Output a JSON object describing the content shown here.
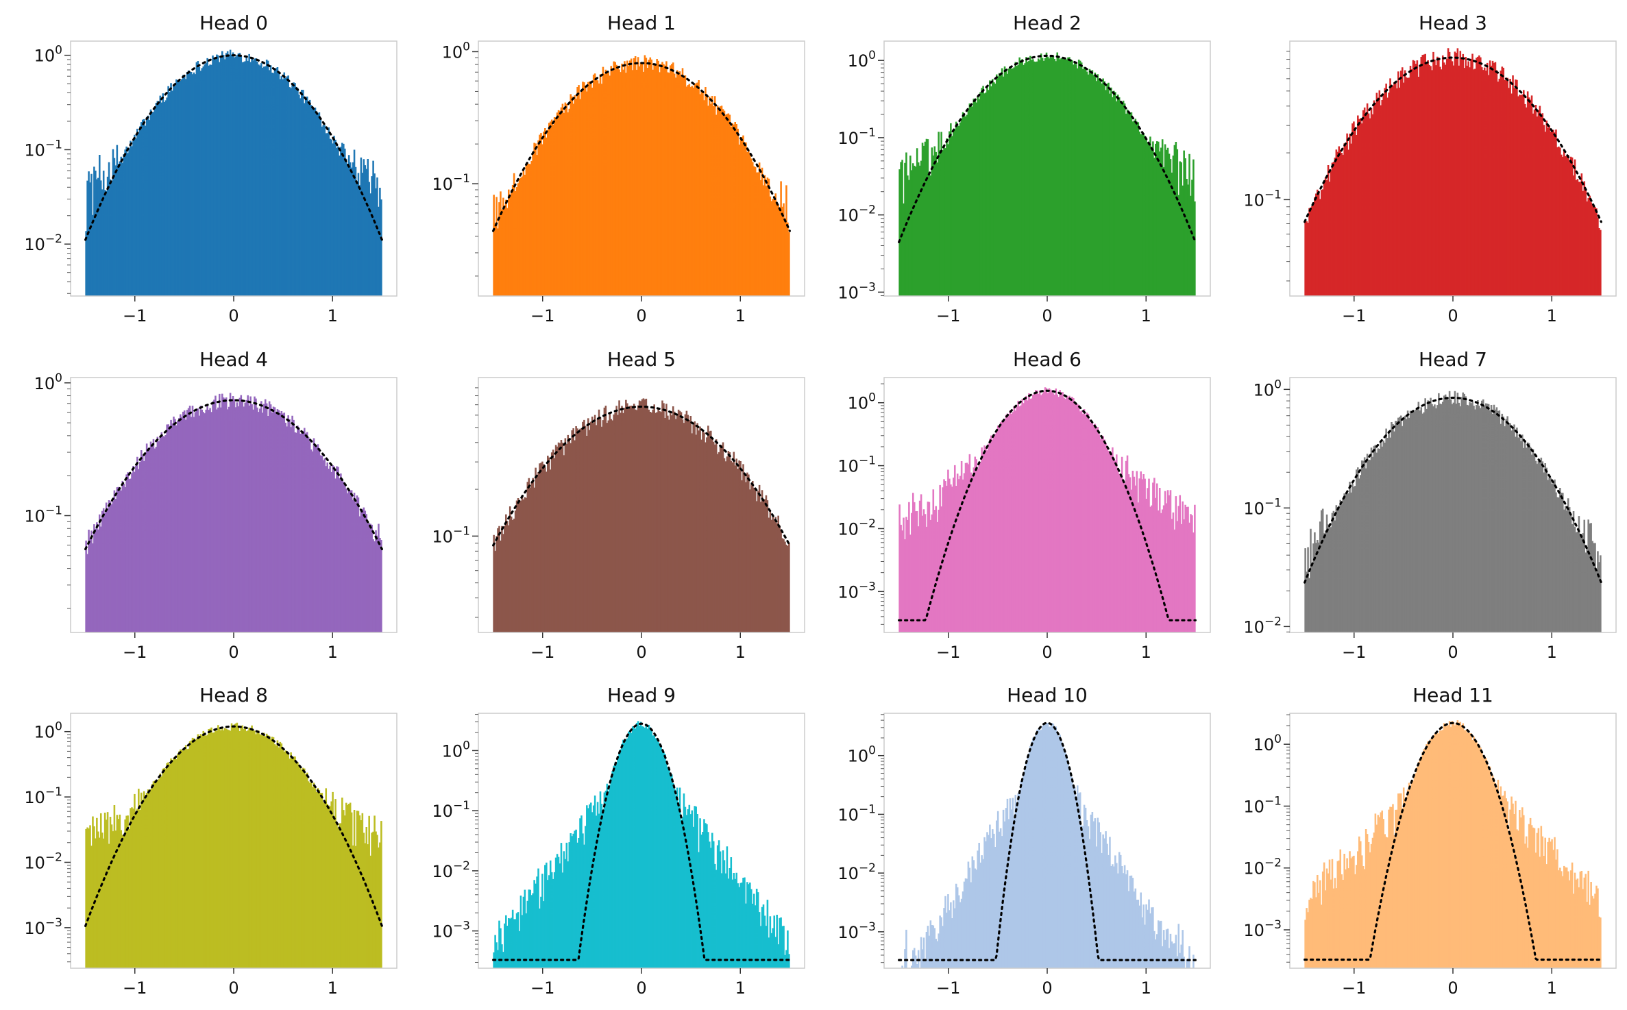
{
  "chart_data": [
    {
      "type": "histogram",
      "title": "Head 0",
      "color": "#1f77b4",
      "log_scale": true,
      "ylim_exp": [
        -2.55,
        0.15
      ],
      "yticks": [
        {
          "exp": 0,
          "label": "10",
          "sup": "0"
        },
        {
          "exp": -1,
          "label": "10",
          "sup": "−1"
        },
        {
          "exp": -2,
          "label": "10",
          "sup": "−2"
        }
      ],
      "xticks": [
        {
          "value": -1,
          "label": "−1"
        },
        {
          "value": 0,
          "label": "0"
        },
        {
          "value": 1,
          "label": "1"
        }
      ],
      "xlim": [
        -1.65,
        1.65
      ],
      "sigma": 0.5,
      "peak": 1.0,
      "fit_floor": 0.0036,
      "noise_floor": 0.0036,
      "grid": false
    },
    {
      "type": "histogram",
      "title": "Head 1",
      "color": "#ff7f0e",
      "log_scale": true,
      "ylim_exp": [
        -1.85,
        0.08
      ],
      "yticks": [
        {
          "exp": 0,
          "label": "10",
          "sup": "0"
        },
        {
          "exp": -1,
          "label": "10",
          "sup": "−1"
        }
      ],
      "xticks": [
        {
          "value": -1,
          "label": "−1"
        },
        {
          "value": 0,
          "label": "0"
        },
        {
          "value": 1,
          "label": "1"
        }
      ],
      "xlim": [
        -1.65,
        1.65
      ],
      "sigma": 0.62,
      "peak": 0.82,
      "fit_floor": 0.016,
      "noise_floor": 0.016,
      "grid": false
    },
    {
      "type": "histogram",
      "title": "Head 2",
      "color": "#2ca02c",
      "log_scale": true,
      "ylim_exp": [
        -3.05,
        0.25
      ],
      "yticks": [
        {
          "exp": 0,
          "label": "10",
          "sup": "0"
        },
        {
          "exp": -1,
          "label": "10",
          "sup": "−1"
        },
        {
          "exp": -2,
          "label": "10",
          "sup": "−2"
        },
        {
          "exp": -3,
          "label": "10",
          "sup": "−3"
        }
      ],
      "xticks": [
        {
          "value": -1,
          "label": "−1"
        },
        {
          "value": 0,
          "label": "0"
        },
        {
          "value": 1,
          "label": "1"
        }
      ],
      "xlim": [
        -1.65,
        1.65
      ],
      "sigma": 0.45,
      "peak": 1.15,
      "fit_floor": 0.0012,
      "noise_floor": 0.0012,
      "grid": false
    },
    {
      "type": "histogram",
      "title": "Head 3",
      "color": "#d62728",
      "log_scale": true,
      "ylim_exp": [
        -1.62,
        0.02
      ],
      "yticks": [
        {
          "exp": -1,
          "label": "10",
          "sup": "−1"
        }
      ],
      "xticks": [
        {
          "value": -1,
          "label": "−1"
        },
        {
          "value": 0,
          "label": "0"
        },
        {
          "value": 1,
          "label": "1"
        }
      ],
      "xlim": [
        -1.65,
        1.65
      ],
      "sigma": 0.68,
      "peak": 0.82,
      "fit_floor": 0.032,
      "noise_floor": 0.032,
      "grid": false
    },
    {
      "type": "histogram",
      "title": "Head 4",
      "color": "#9467bd",
      "log_scale": true,
      "ylim_exp": [
        -1.88,
        0.04
      ],
      "yticks": [
        {
          "exp": 0,
          "label": "10",
          "sup": "0"
        },
        {
          "exp": -1,
          "label": "10",
          "sup": "−1"
        }
      ],
      "xticks": [
        {
          "value": -1,
          "label": "−1"
        },
        {
          "value": 0,
          "label": "0"
        },
        {
          "value": 1,
          "label": "1"
        }
      ],
      "xlim": [
        -1.65,
        1.65
      ],
      "sigma": 0.66,
      "peak": 0.74,
      "fit_floor": 0.015,
      "noise_floor": 0.015,
      "grid": false
    },
    {
      "type": "histogram",
      "title": "Head 5",
      "color": "#8c564b",
      "log_scale": true,
      "ylim_exp": [
        -1.62,
        0.02
      ],
      "yticks": [
        {
          "exp": -1,
          "label": "10",
          "sup": "−1"
        }
      ],
      "xticks": [
        {
          "value": -1,
          "label": "−1"
        },
        {
          "value": 0,
          "label": "0"
        },
        {
          "value": 1,
          "label": "1"
        }
      ],
      "xlim": [
        -1.65,
        1.65
      ],
      "sigma": 0.74,
      "peak": 0.68,
      "fit_floor": 0.025,
      "noise_floor": 0.025,
      "grid": false
    },
    {
      "type": "histogram",
      "title": "Head 6",
      "color": "#e377c2",
      "log_scale": true,
      "ylim_exp": [
        -3.65,
        0.4
      ],
      "yticks": [
        {
          "exp": 0,
          "label": "10",
          "sup": "0"
        },
        {
          "exp": -1,
          "label": "10",
          "sup": "−1"
        },
        {
          "exp": -2,
          "label": "10",
          "sup": "−2"
        },
        {
          "exp": -3,
          "label": "10",
          "sup": "−3"
        }
      ],
      "xticks": [
        {
          "value": -1,
          "label": "−1"
        },
        {
          "value": 0,
          "label": "0"
        },
        {
          "value": 1,
          "label": "1"
        }
      ],
      "xlim": [
        -1.65,
        1.65
      ],
      "sigma": 0.3,
      "peak": 1.55,
      "fit_floor": 0.00035,
      "noise_floor": 0.00035,
      "grid": false
    },
    {
      "type": "histogram",
      "title": "Head 7",
      "color": "#7f7f7f",
      "log_scale": true,
      "ylim_exp": [
        -2.05,
        0.1
      ],
      "yticks": [
        {
          "exp": 0,
          "label": "10",
          "sup": "0"
        },
        {
          "exp": -1,
          "label": "10",
          "sup": "−1"
        },
        {
          "exp": -2,
          "label": "10",
          "sup": "−2"
        }
      ],
      "xticks": [
        {
          "value": -1,
          "label": "−1"
        },
        {
          "value": 0,
          "label": "0"
        },
        {
          "value": 1,
          "label": "1"
        }
      ],
      "xlim": [
        -1.65,
        1.65
      ],
      "sigma": 0.56,
      "peak": 0.85,
      "fit_floor": 0.011,
      "noise_floor": 0.011,
      "grid": false
    },
    {
      "type": "histogram",
      "title": "Head 8",
      "color": "#bcbd22",
      "log_scale": true,
      "ylim_exp": [
        -3.62,
        0.28
      ],
      "yticks": [
        {
          "exp": 0,
          "label": "10",
          "sup": "0"
        },
        {
          "exp": -1,
          "label": "10",
          "sup": "−1"
        },
        {
          "exp": -2,
          "label": "10",
          "sup": "−2"
        },
        {
          "exp": -3,
          "label": "10",
          "sup": "−3"
        }
      ],
      "xticks": [
        {
          "value": -1,
          "label": "−1"
        },
        {
          "value": 0,
          "label": "0"
        },
        {
          "value": 1,
          "label": "1"
        }
      ],
      "xlim": [
        -1.65,
        1.65
      ],
      "sigma": 0.4,
      "peak": 1.2,
      "fit_floor": 0.00033,
      "noise_floor": 0.00033,
      "grid": false
    },
    {
      "type": "histogram",
      "title": "Head 9",
      "color": "#17becf",
      "log_scale": true,
      "ylim_exp": [
        -3.62,
        0.62
      ],
      "yticks": [
        {
          "exp": 0,
          "label": "10",
          "sup": "0"
        },
        {
          "exp": -1,
          "label": "10",
          "sup": "−1"
        },
        {
          "exp": -2,
          "label": "10",
          "sup": "−2"
        },
        {
          "exp": -3,
          "label": "10",
          "sup": "−3"
        }
      ],
      "xticks": [
        {
          "value": -1,
          "label": "−1"
        },
        {
          "value": 0,
          "label": "0"
        },
        {
          "value": 1,
          "label": "1"
        }
      ],
      "xlim": [
        -1.65,
        1.65
      ],
      "sigma": 0.15,
      "peak": 2.8,
      "fit_floor": 0.00033,
      "noise_floor": 0.00033,
      "grid": false
    },
    {
      "type": "histogram",
      "title": "Head 10",
      "color": "#aec7e8",
      "log_scale": true,
      "ylim_exp": [
        -3.62,
        0.72
      ],
      "yticks": [
        {
          "exp": 0,
          "label": "10",
          "sup": "0"
        },
        {
          "exp": -1,
          "label": "10",
          "sup": "−1"
        },
        {
          "exp": -2,
          "label": "10",
          "sup": "−2"
        },
        {
          "exp": -3,
          "label": "10",
          "sup": "−3"
        }
      ],
      "xticks": [
        {
          "value": -1,
          "label": "−1"
        },
        {
          "value": 0,
          "label": "0"
        },
        {
          "value": 1,
          "label": "1"
        }
      ],
      "xlim": [
        -1.65,
        1.65
      ],
      "sigma": 0.12,
      "peak": 3.6,
      "fit_floor": 0.00033,
      "noise_floor": 0.00033,
      "grid": false
    },
    {
      "type": "histogram",
      "title": "Head 11",
      "color": "#ffbb78",
      "log_scale": true,
      "ylim_exp": [
        -3.62,
        0.5
      ],
      "yticks": [
        {
          "exp": 0,
          "label": "10",
          "sup": "0"
        },
        {
          "exp": -1,
          "label": "10",
          "sup": "−1"
        },
        {
          "exp": -2,
          "label": "10",
          "sup": "−2"
        },
        {
          "exp": -3,
          "label": "10",
          "sup": "−3"
        }
      ],
      "xticks": [
        {
          "value": -1,
          "label": "−1"
        },
        {
          "value": 0,
          "label": "0"
        },
        {
          "value": 1,
          "label": "1"
        }
      ],
      "xlim": [
        -1.65,
        1.65
      ],
      "sigma": 0.2,
      "peak": 2.2,
      "fit_floor": 0.00033,
      "noise_floor": 0.00033,
      "grid": false
    }
  ]
}
